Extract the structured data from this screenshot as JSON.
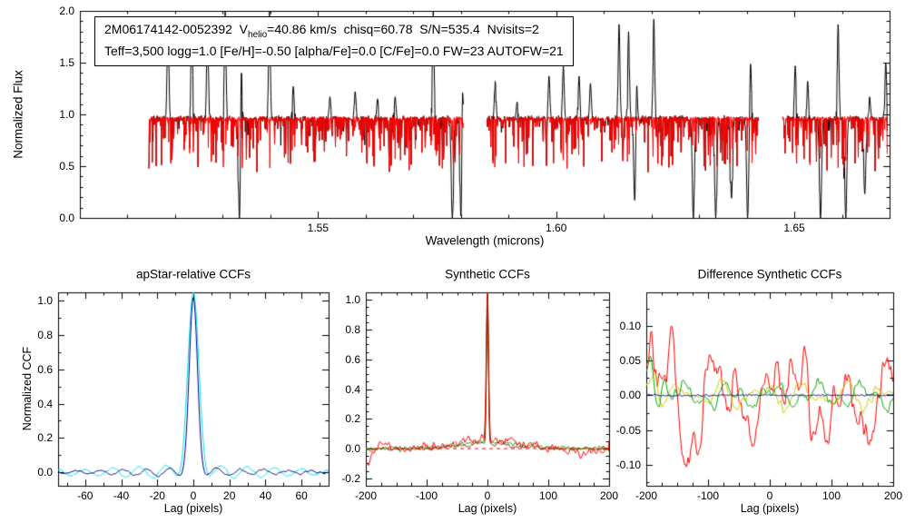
{
  "figure": {
    "background": "#ffffff",
    "frame_color": "#000000"
  },
  "chart_data": [
    {
      "id": "spectrum",
      "type": "line",
      "title": "",
      "xlabel": "Wavelength (microns)",
      "ylabel": "Normalized Flux",
      "xlim": [
        1.5,
        1.67
      ],
      "ylim": [
        0.0,
        2.0
      ],
      "grid": false,
      "xticks": {
        "values": [
          1.55,
          1.6,
          1.65
        ],
        "labels": [
          "1.55",
          "1.60",
          "1.65"
        ],
        "minor_step": 0.01
      },
      "yticks": {
        "values": [
          0.0,
          0.5,
          1.0,
          1.5,
          2.0
        ],
        "labels": [
          "0.0",
          "0.5",
          "1.0",
          "1.5",
          "2.0"
        ],
        "minor_step": 0.1
      },
      "annotation": {
        "line1_pre": "2M06174142-0052392  V",
        "line1_sub": "helio",
        "line1_post": "=40.86 km/s  chisq=60.78  S/N=535.4  Nvisits=2",
        "line2": "Teff=3,500 logg=1.0 [Fe/H]=-0.50 [alpha/Fe]=0.0 [C/Fe]=0.0 FW=23 AUTOFW=21",
        "values": {
          "target": "2M06174142-0052392",
          "vhelio_km_s": 40.86,
          "chisq": 60.78,
          "s_n": 535.4,
          "nvisits": 2,
          "teff": "3,500",
          "logg": 1.0,
          "fe_h": -0.5,
          "alpha_fe": 0.0,
          "c_fe": 0.0,
          "fw": 23,
          "autofw": 21
        }
      },
      "segments": [
        [
          1.5145,
          1.5805
        ],
        [
          1.5855,
          1.6425
        ],
        [
          1.6475,
          1.6695
        ]
      ],
      "series": [
        {
          "name": "observed-spectrum",
          "color": "#000000"
        },
        {
          "name": "best-fit-model",
          "color": "#ff0000"
        }
      ],
      "gen": {
        "seed": 7,
        "baseline": 0.96,
        "noise": 0.02,
        "absorption_prob": 0.5,
        "absorption_depth": 0.5,
        "emission_spikes": [
          [
            1.5185,
            1.93
          ],
          [
            1.5235,
            1.92
          ],
          [
            1.5268,
            1.9
          ],
          [
            1.5305,
            2.0
          ],
          [
            1.5338,
            1.88
          ],
          [
            1.5398,
            2.0
          ],
          [
            1.5448,
            1.27
          ],
          [
            1.5525,
            1.17
          ],
          [
            1.5578,
            1.22
          ],
          [
            1.5625,
            1.15
          ],
          [
            1.5662,
            1.17
          ],
          [
            1.5742,
            2.0
          ],
          [
            1.5802,
            2.0
          ],
          [
            1.5872,
            1.32
          ],
          [
            1.5918,
            1.12
          ],
          [
            1.5985,
            1.37
          ],
          [
            1.6015,
            1.47
          ],
          [
            1.6048,
            1.37
          ],
          [
            1.6072,
            1.3
          ],
          [
            1.6132,
            1.87
          ],
          [
            1.6152,
            1.8
          ],
          [
            1.6168,
            1.62
          ],
          [
            1.6205,
            1.92
          ],
          [
            1.6408,
            1.52
          ],
          [
            1.6502,
            1.47
          ],
          [
            1.6528,
            1.32
          ],
          [
            1.6592,
            1.87
          ],
          [
            1.6658,
            1.17
          ],
          [
            1.6692,
            1.5
          ]
        ],
        "deep_lines": [
          [
            1.5335,
            1.0
          ],
          [
            1.5782,
            1.0
          ],
          [
            1.58,
            1.0
          ],
          [
            1.6165,
            0.85
          ],
          [
            1.6288,
            1.0
          ],
          [
            1.6335,
            1.0
          ],
          [
            1.6368,
            0.8
          ],
          [
            1.6402,
            1.0
          ],
          [
            1.6555,
            1.0
          ],
          [
            1.6608,
            1.0
          ],
          [
            1.6648,
            0.75
          ]
        ]
      }
    },
    {
      "id": "ccf_apstar",
      "type": "line",
      "title": "apStar-relative CCFs",
      "xlabel": "Lag (pixels)",
      "ylabel": "Normalized CCF",
      "xlim": [
        -75,
        75
      ],
      "ylim": [
        -0.08,
        1.05
      ],
      "grid": false,
      "peak_lag": 0,
      "peak_height": 1.0,
      "xticks": {
        "values": [
          -60,
          -40,
          -20,
          0,
          20,
          40,
          60
        ],
        "labels": [
          "-60",
          "-40",
          "-20",
          "0",
          "20",
          "40",
          "60"
        ],
        "minor_step": 10
      },
      "yticks": {
        "values": [
          0.0,
          0.2,
          0.4,
          0.6,
          0.8,
          1.0
        ],
        "labels": [
          "0.0",
          "0.2",
          "0.4",
          "0.6",
          "0.8",
          "1.0"
        ],
        "minor_step": 0.1
      },
      "series": [
        {
          "name": "visit-ccf-cyan",
          "color": "#00e5e5",
          "gen": {
            "seed": 12,
            "peak": {
              "h": 1.0,
              "w": 3.1
            },
            "side": {
              "amp": 0.05,
              "period": 15,
              "decay": 60
            },
            "noise": {
              "sigma": 0.007,
              "smooth": 2
            }
          }
        },
        {
          "name": "combined-ccf-navy",
          "color": "#00008b",
          "gen": {
            "seed": 11,
            "peak": {
              "h": 0.99,
              "w": 2.3
            },
            "side": {
              "amp": 0.028,
              "period": 13,
              "decay": 55
            },
            "noise": {
              "sigma": 0.006,
              "smooth": 2
            }
          }
        }
      ]
    },
    {
      "id": "ccf_synth",
      "type": "line",
      "title": "Synthetic CCFs",
      "xlabel": "Lag (pixels)",
      "ylabel": "",
      "xlim": [
        -200,
        200
      ],
      "ylim": [
        -0.25,
        1.05
      ],
      "grid": false,
      "peak_lag": 0,
      "peak_height": 1.0,
      "xticks": {
        "values": [
          -200,
          -100,
          0,
          100,
          200
        ],
        "labels": [
          "-200",
          "-100",
          "0",
          "100",
          "200"
        ],
        "minor_step": 25
      },
      "yticks": {
        "values": [
          -0.2,
          0.0,
          0.2,
          0.4,
          0.6,
          0.8,
          1.0
        ],
        "labels": [
          "-0.2",
          "0.0",
          "0.2",
          "0.4",
          "0.6",
          "0.8",
          "1.0"
        ],
        "minor_step": 0.05
      },
      "reflines": [
        {
          "y": 0,
          "color": "#ff0000",
          "dash": [
            4,
            4
          ]
        }
      ],
      "series": [
        {
          "name": "synthetic-ccf-green",
          "color": "#00a800",
          "gen": {
            "seed": 21,
            "peak": {
              "h": 0.97,
              "w": 1.7
            },
            "broad": {
              "amp": 0.04,
              "w": 55
            },
            "noise": {
              "sigma": 0.016,
              "smooth": 2
            }
          }
        },
        {
          "name": "synthetic-ccf-red",
          "color": "#ff0000",
          "gen": {
            "seed": 23,
            "peak": {
              "h": 1.0,
              "w": 1.9
            },
            "broad": {
              "amp": 0.06,
              "w": 50
            },
            "noise": {
              "sigma": 0.03,
              "smooth": 2
            },
            "features": [
              [
                -195,
                -0.12,
                4
              ],
              [
                -170,
                0.05,
                6
              ],
              [
                155,
                -0.05,
                7
              ]
            ]
          }
        },
        {
          "name": "synthetic-ccf-dark",
          "color": "#992200",
          "gen": {
            "seed": 22,
            "peak": {
              "h": 1.0,
              "w": 1.5
            },
            "broad": {
              "amp": 0.03,
              "w": 45
            },
            "noise": {
              "sigma": 0.012,
              "smooth": 2
            }
          }
        }
      ]
    },
    {
      "id": "ccf_diff",
      "type": "line",
      "title": "Difference Synthetic CCFs",
      "xlabel": "Lag (pixels)",
      "ylabel": "",
      "xlim": [
        -200,
        200
      ],
      "ylim": [
        -0.13,
        0.148
      ],
      "grid": false,
      "xticks": {
        "values": [
          -200,
          -100,
          0,
          100,
          200
        ],
        "labels": [
          "-200",
          "-100",
          "0",
          "100",
          "200"
        ],
        "minor_step": 25
      },
      "yticks": {
        "values": [
          -0.1,
          -0.05,
          0.0,
          0.05,
          0.1
        ],
        "labels": [
          "-0.10",
          "-0.05",
          "0.00",
          "0.05",
          "0.10"
        ],
        "minor_step": 0.025
      },
      "series": [
        {
          "name": "diff-ccf-red",
          "color": "#ff0000",
          "gen": {
            "seed": 34,
            "noise": {
              "sigma": 0.018,
              "smooth": 2
            },
            "waves": [
              [
                0.034,
                103,
                0.5
              ],
              [
                0.028,
                47,
                2.2
              ],
              [
                0.016,
                23,
                4.5
              ]
            ],
            "features": [
              [
                -160,
                0.135,
                5
              ],
              [
                -137,
                -0.065,
                9
              ],
              [
                -112,
                -0.05,
                7
              ],
              [
                58,
                0.085,
                5
              ],
              [
                92,
                -0.07,
                8
              ],
              [
                140,
                -0.055,
                10
              ],
              [
                188,
                0.06,
                6
              ]
            ]
          }
        },
        {
          "name": "diff-ccf-yellow",
          "color": "#cccc00",
          "gen": {
            "seed": 33,
            "noise": {
              "sigma": 0.007,
              "smooth": 3
            },
            "waves": [
              [
                0.012,
                67,
                2.6
              ],
              [
                0.009,
                41,
                0.7
              ]
            ],
            "features": [
              [
                -186,
                0.04,
                5
              ]
            ]
          }
        },
        {
          "name": "diff-ccf-green",
          "color": "#00a800",
          "gen": {
            "seed": 32,
            "noise": {
              "sigma": 0.007,
              "smooth": 3
            },
            "waves": [
              [
                0.012,
                73,
                1.1
              ],
              [
                0.008,
                31,
                4.0
              ]
            ],
            "features": [
              [
                -193,
                0.05,
                5
              ],
              [
                -172,
                0.028,
                4
              ]
            ]
          }
        },
        {
          "name": "diff-ccf-navy",
          "color": "#00008b",
          "gen": {
            "seed": 31,
            "level": 0,
            "noise": {
              "sigma": 0.0015,
              "smooth": 2
            }
          }
        }
      ]
    }
  ]
}
